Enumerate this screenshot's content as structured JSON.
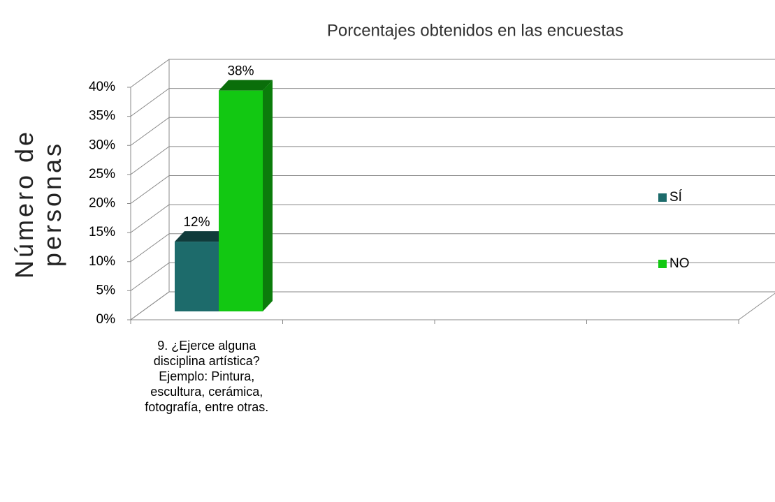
{
  "chart_data": {
    "type": "bar3d",
    "title": "Porcentajes obtenidos en las encuestas",
    "y_label": "Número de personas",
    "categories": [
      "9. ¿Ejerce alguna disciplina artística? Ejemplo: Pintura, escultura, cerámica, fotografía, entre otras.",
      null,
      null,
      null
    ],
    "series": [
      {
        "name": "SÍ",
        "color": "#1d6b6b",
        "values": [
          12,
          null,
          null,
          null
        ],
        "value_labels": [
          "12%",
          null,
          null,
          null
        ]
      },
      {
        "name": "NO",
        "color": "#12c812",
        "values": [
          38,
          null,
          null,
          null
        ],
        "value_labels": [
          "38%",
          null,
          null,
          null
        ]
      }
    ],
    "ylim": [
      0,
      40
    ],
    "yticks": [
      {
        "value": 0,
        "label": "0%"
      },
      {
        "value": 5,
        "label": "5%"
      },
      {
        "value": 10,
        "label": "10%"
      },
      {
        "value": 15,
        "label": "15%"
      },
      {
        "value": 20,
        "label": "20%"
      },
      {
        "value": 25,
        "label": "25%"
      },
      {
        "value": 30,
        "label": "30%"
      },
      {
        "value": 35,
        "label": "35%"
      },
      {
        "value": 40,
        "label": "40%"
      }
    ],
    "grid": true,
    "legend": "right"
  }
}
